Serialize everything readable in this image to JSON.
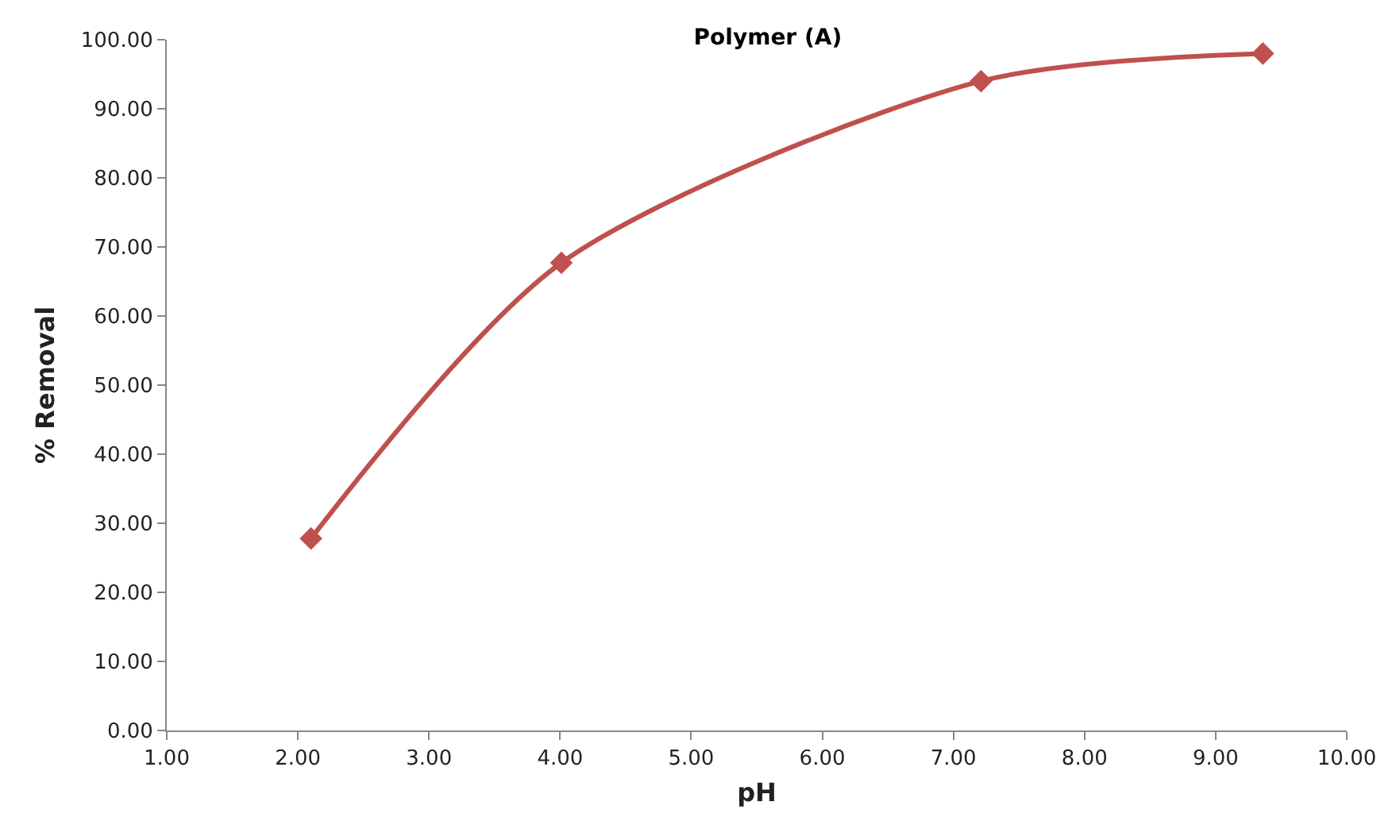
{
  "chart_data": {
    "type": "line",
    "title": "Polymer (A)",
    "xlabel": "pH",
    "ylabel": "% Removal",
    "x": [
      2.1,
      4.01,
      7.21,
      9.36
    ],
    "series": [
      {
        "color": "#c0504d",
        "values": [
          27.8,
          67.7,
          94.0,
          98.0
        ]
      }
    ],
    "xlim": [
      1,
      10
    ],
    "xticks": [
      {
        "value": 1,
        "label": "1.00"
      },
      {
        "value": 2,
        "label": "2.00"
      },
      {
        "value": 3,
        "label": "3.00"
      },
      {
        "value": 4,
        "label": "4.00"
      },
      {
        "value": 5,
        "label": "5.00"
      },
      {
        "value": 6,
        "label": "6.00"
      },
      {
        "value": 7,
        "label": "7.00"
      },
      {
        "value": 8,
        "label": "8.00"
      },
      {
        "value": 9,
        "label": "9.00"
      },
      {
        "value": 10,
        "label": "10.00"
      }
    ],
    "ylim": [
      0,
      100
    ],
    "yticks": [
      {
        "value": 0,
        "label": "0.00"
      },
      {
        "value": 10,
        "label": "10.00"
      },
      {
        "value": 20,
        "label": "20.00"
      },
      {
        "value": 30,
        "label": "30.00"
      },
      {
        "value": 40,
        "label": "40.00"
      },
      {
        "value": 50,
        "label": "50.00"
      },
      {
        "value": 60,
        "label": "60.00"
      },
      {
        "value": 70,
        "label": "70.00"
      },
      {
        "value": 80,
        "label": "80.00"
      },
      {
        "value": 90,
        "label": "90.00"
      },
      {
        "value": 100,
        "label": "100.00"
      }
    ],
    "marker": "diamond",
    "line_style": "solid"
  }
}
